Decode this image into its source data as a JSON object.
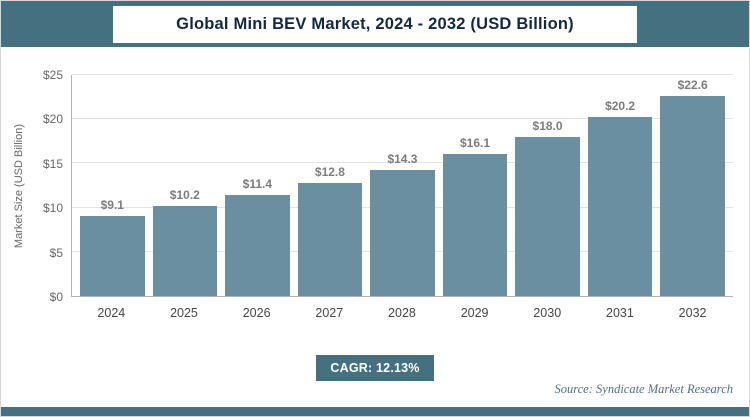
{
  "header": {
    "title": "Global Mini BEV Market, 2024 - 2032 (USD Billion)"
  },
  "chart_data": {
    "type": "bar",
    "title": "Global Mini BEV Market, 2024 - 2032 (USD Billion)",
    "categories": [
      "2024",
      "2025",
      "2026",
      "2027",
      "2028",
      "2029",
      "2030",
      "2031",
      "2032"
    ],
    "values": [
      9.1,
      10.2,
      11.4,
      12.8,
      14.3,
      16.1,
      18.0,
      20.2,
      22.6
    ],
    "bar_labels": [
      "$9.1",
      "$10.2",
      "$11.4",
      "$12.8",
      "$14.3",
      "$16.1",
      "$18.0",
      "$20.2",
      "$22.6"
    ],
    "xlabel": "",
    "ylabel": "Market Size (USD Billion)",
    "ylim": [
      0,
      25
    ],
    "yticks": [
      {
        "value": 0,
        "label": "$0"
      },
      {
        "value": 5,
        "label": "$5"
      },
      {
        "value": 10,
        "label": "$10"
      },
      {
        "value": 15,
        "label": "$15"
      },
      {
        "value": 20,
        "label": "$20"
      },
      {
        "value": 25,
        "label": "$25"
      }
    ],
    "grid": true,
    "legend": "none"
  },
  "footer": {
    "cagr_label": "CAGR: 12.13%",
    "source": "Source: Syndicate Market Research"
  },
  "colors": {
    "accent": "#44707f",
    "bar": "#6a8fa0",
    "title_text": "#15293e",
    "label_text": "#7c7c7c"
  }
}
